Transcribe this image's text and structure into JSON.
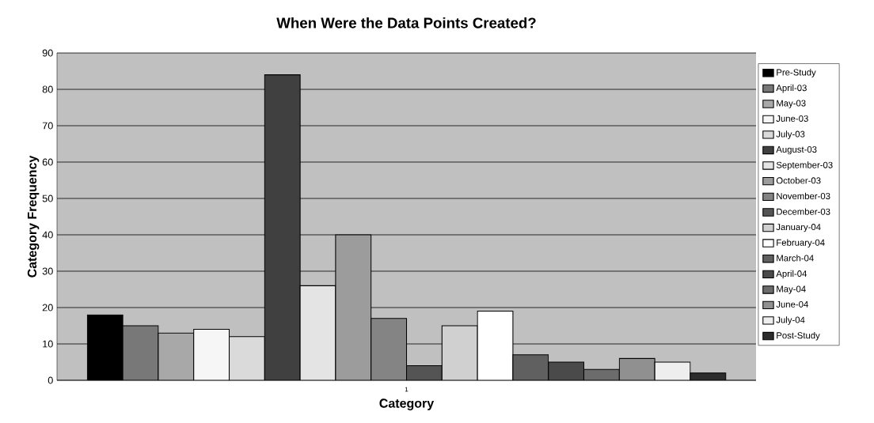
{
  "chart_data": {
    "type": "bar",
    "title": "When Were the Data Points Created?",
    "xlabel": "Category",
    "ylabel": "Category Frequency",
    "categories": [
      "1"
    ],
    "series": [
      {
        "name": "Pre-Study",
        "color": "#000000",
        "values": [
          18
        ]
      },
      {
        "name": "April-03",
        "color": "#787878",
        "values": [
          15
        ]
      },
      {
        "name": "May-03",
        "color": "#a8a8a8",
        "values": [
          13
        ]
      },
      {
        "name": "June-03",
        "color": "#f6f6f6",
        "values": [
          14
        ]
      },
      {
        "name": "July-03",
        "color": "#dadada",
        "values": [
          12
        ]
      },
      {
        "name": "August-03",
        "color": "#404040",
        "values": [
          84
        ]
      },
      {
        "name": "September-03",
        "color": "#e4e4e4",
        "values": [
          26
        ]
      },
      {
        "name": "October-03",
        "color": "#9c9c9c",
        "values": [
          40
        ]
      },
      {
        "name": "November-03",
        "color": "#848484",
        "values": [
          17
        ]
      },
      {
        "name": "December-03",
        "color": "#545454",
        "values": [
          4
        ]
      },
      {
        "name": "January-04",
        "color": "#d0d0d0",
        "values": [
          15
        ]
      },
      {
        "name": "February-04",
        "color": "#ffffff",
        "values": [
          19
        ]
      },
      {
        "name": "March-04",
        "color": "#606060",
        "values": [
          7
        ]
      },
      {
        "name": "April-04",
        "color": "#4a4a4a",
        "values": [
          5
        ]
      },
      {
        "name": "May-04",
        "color": "#6c6c6c",
        "values": [
          3
        ]
      },
      {
        "name": "June-04",
        "color": "#909090",
        "values": [
          6
        ]
      },
      {
        "name": "July-04",
        "color": "#eeeeee",
        "values": [
          5
        ]
      },
      {
        "name": "Post-Study",
        "color": "#2c2c2c",
        "values": [
          2
        ]
      }
    ],
    "ylim": [
      0,
      90
    ],
    "yticks": [
      0,
      10,
      20,
      30,
      40,
      50,
      60,
      70,
      80,
      90
    ],
    "grid": "y",
    "legend": "right"
  }
}
